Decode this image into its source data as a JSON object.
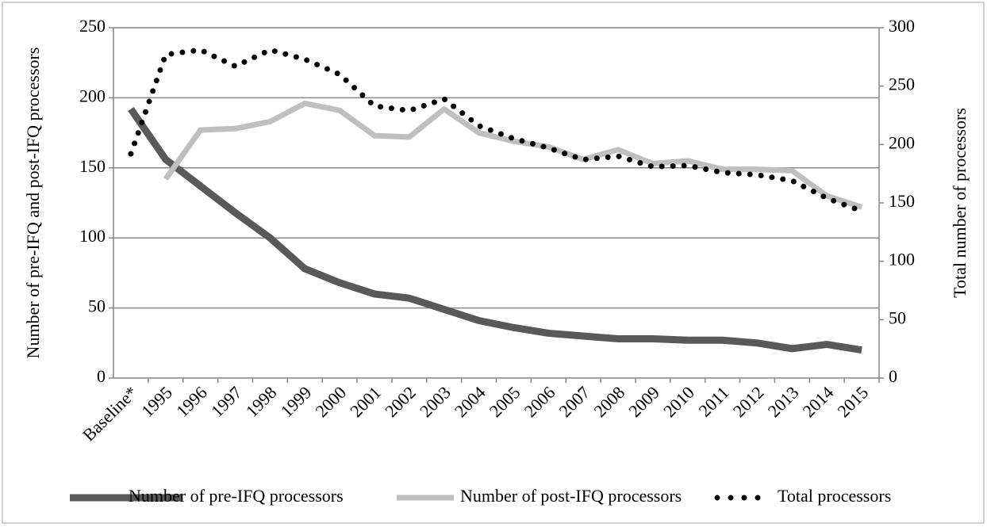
{
  "chart_data": {
    "type": "line",
    "y_label": "Number of pre-IFQ and post-IFQ processors",
    "y2_label": "Total number of processors",
    "categories": [
      "Baseline*",
      "1995",
      "1996",
      "1997",
      "1998",
      "1999",
      "2000",
      "2001",
      "2002",
      "2003",
      "2004",
      "2005",
      "2006",
      "2007",
      "2008",
      "2009",
      "2010",
      "2011",
      "2012",
      "2013",
      "2014",
      "2015"
    ],
    "series": [
      {
        "name": "Number of pre-IFQ processors",
        "color": "#595959",
        "style": "solid",
        "axis": "y",
        "values": [
          192,
          156,
          137,
          118,
          100,
          78,
          68,
          60,
          57,
          49,
          41,
          36,
          32,
          30,
          28,
          28,
          27,
          27,
          25,
          21,
          24,
          20
        ]
      },
      {
        "name": "Number of post-IFQ processors",
        "color": "#bfbfbf",
        "style": "solid",
        "axis": "y",
        "values": [
          null,
          142,
          177,
          178,
          183,
          196,
          191,
          173,
          172,
          192,
          175,
          169,
          165,
          156,
          163,
          153,
          155,
          149,
          149,
          148,
          130,
          122
        ]
      },
      {
        "name": "Total processors",
        "color": "#000000",
        "style": "dotted",
        "axis": "y2",
        "values": [
          192,
          277,
          281,
          267,
          281,
          273,
          260,
          233,
          229,
          239,
          216,
          205,
          197,
          187,
          190,
          181,
          182,
          176,
          174,
          169,
          154,
          143
        ]
      }
    ],
    "ylim": [
      0,
      250
    ],
    "yticks": [
      0,
      50,
      100,
      150,
      200,
      250
    ],
    "y2lim": [
      0,
      300
    ],
    "y2ticks": [
      0,
      50,
      100,
      150,
      200,
      250,
      300
    ],
    "grid": true,
    "legend": "bottom"
  }
}
